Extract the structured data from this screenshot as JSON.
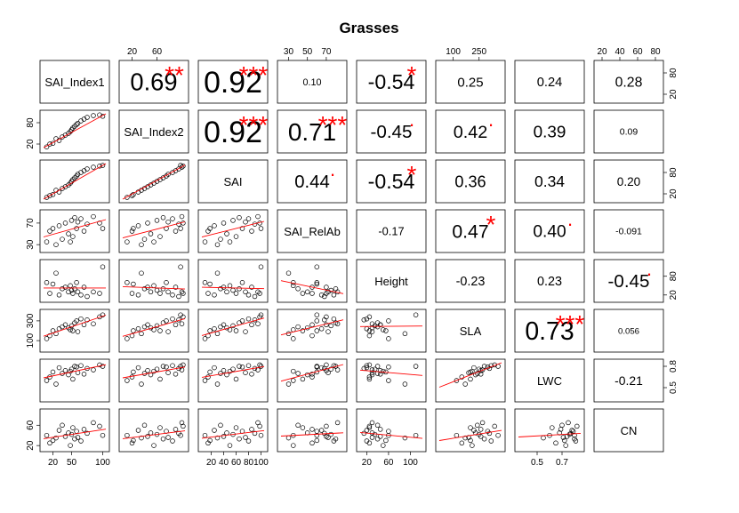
{
  "chart_data": {
    "type": "scatter",
    "title": "Grasses",
    "variables": [
      "SAI_Index1",
      "SAI_Index2",
      "SAI",
      "SAI_RelAb",
      "Height",
      "SLA",
      "LWC",
      "CN"
    ],
    "ranges": [
      [
        5,
        105
      ],
      [
        5,
        105
      ],
      [
        5,
        105
      ],
      [
        22,
        88
      ],
      [
        8,
        122
      ],
      [
        20,
        380
      ],
      [
        0.35,
        0.85
      ],
      [
        15,
        85
      ]
    ],
    "ticks": [
      [
        20,
        40,
        60,
        80,
        100
      ],
      [
        20,
        60,
        100
      ],
      [
        20,
        40,
        60,
        80,
        100
      ],
      [
        30,
        50,
        70
      ],
      [
        20,
        60,
        100
      ],
      [
        100,
        200,
        300
      ],
      [
        0.5,
        0.6,
        0.7,
        0.8
      ],
      [
        20,
        40,
        60,
        80
      ]
    ],
    "tick_labels": [
      [
        "20",
        "",
        "60",
        "",
        "100"
      ],
      [
        "20",
        "60",
        "",
        "",
        ""
      ],
      [
        "20",
        "40",
        "60",
        "80",
        "100"
      ],
      [
        "30",
        "50",
        "70",
        "",
        ""
      ],
      [
        "20",
        "",
        "60",
        "",
        "100"
      ],
      [
        "100",
        "200",
        "300",
        "",
        ""
      ],
      [
        "0.5",
        "0.6",
        "0.7",
        "0.8",
        ""
      ],
      [
        "20",
        "",
        "60",
        "",
        ""
      ]
    ],
    "top_axis_ticks": {
      "1": [
        "20",
        "60"
      ],
      "3": [
        "30",
        "50",
        "70"
      ],
      "5": [
        "100",
        "250"
      ],
      "7": [
        "20",
        "40",
        "60",
        "80"
      ]
    },
    "top_axis_values": {
      "1": [
        20,
        60
      ],
      "3": [
        30,
        50,
        70
      ],
      "5": [
        100,
        250
      ],
      "7": [
        20,
        40,
        60,
        80
      ]
    },
    "bottom_axis_ticks": {
      "0": [
        "20",
        "50",
        "100"
      ],
      "2": [
        "20",
        "40",
        "60",
        "80",
        "100"
      ],
      "4": [
        "20",
        "60",
        "100"
      ],
      "6": [
        "0.5",
        "0.7"
      ]
    },
    "bottom_axis_values": {
      "0": [
        20,
        50,
        100
      ],
      "2": [
        20,
        40,
        60,
        80,
        100
      ],
      "4": [
        20,
        60,
        100
      ],
      "6": [
        0.5,
        0.7
      ]
    },
    "left_axis_ticks": {
      "1": [
        "20",
        "80"
      ],
      "3": [
        "30",
        "70"
      ],
      "5": [
        "100",
        "300"
      ],
      "7": [
        "20",
        "60"
      ]
    },
    "left_axis_values": {
      "1": [
        20,
        80
      ],
      "3": [
        30,
        70
      ],
      "5": [
        100,
        300
      ],
      "7": [
        20,
        60
      ]
    },
    "right_axis_ticks": {
      "0": [
        "20",
        "80"
      ],
      "2": [
        "20",
        "80"
      ],
      "4": [
        "20",
        "80"
      ],
      "6": [
        "0.5",
        "0.8"
      ]
    },
    "right_axis_values": {
      "0": [
        20,
        80
      ],
      "2": [
        20,
        80
      ],
      "4": [
        20,
        80
      ],
      "6": [
        0.5,
        0.8
      ]
    },
    "correlations": [
      {
        "row": 0,
        "col": 1,
        "r": "0.69",
        "stars": "**"
      },
      {
        "row": 0,
        "col": 2,
        "r": "0.92",
        "stars": "***"
      },
      {
        "row": 0,
        "col": 3,
        "r": "0.10",
        "stars": ""
      },
      {
        "row": 0,
        "col": 4,
        "r": "-0.54",
        "stars": "*"
      },
      {
        "row": 0,
        "col": 5,
        "r": "0.25",
        "stars": ""
      },
      {
        "row": 0,
        "col": 6,
        "r": "0.24",
        "stars": ""
      },
      {
        "row": 0,
        "col": 7,
        "r": "0.28",
        "stars": ""
      },
      {
        "row": 1,
        "col": 2,
        "r": "0.92",
        "stars": "***"
      },
      {
        "row": 1,
        "col": 3,
        "r": "0.71",
        "stars": "***"
      },
      {
        "row": 1,
        "col": 4,
        "r": "-0.45",
        "stars": "."
      },
      {
        "row": 1,
        "col": 5,
        "r": "0.42",
        "stars": "."
      },
      {
        "row": 1,
        "col": 6,
        "r": "0.39",
        "stars": ""
      },
      {
        "row": 1,
        "col": 7,
        "r": "0.09",
        "stars": ""
      },
      {
        "row": 2,
        "col": 3,
        "r": "0.44",
        "stars": "."
      },
      {
        "row": 2,
        "col": 4,
        "r": "-0.54",
        "stars": "*"
      },
      {
        "row": 2,
        "col": 5,
        "r": "0.36",
        "stars": ""
      },
      {
        "row": 2,
        "col": 6,
        "r": "0.34",
        "stars": ""
      },
      {
        "row": 2,
        "col": 7,
        "r": "0.20",
        "stars": ""
      },
      {
        "row": 3,
        "col": 4,
        "r": "-0.17",
        "stars": ""
      },
      {
        "row": 3,
        "col": 5,
        "r": "0.47",
        "stars": "*"
      },
      {
        "row": 3,
        "col": 6,
        "r": "0.40",
        "stars": "."
      },
      {
        "row": 3,
        "col": 7,
        "r": "-0.091",
        "stars": ""
      },
      {
        "row": 4,
        "col": 5,
        "r": "-0.23",
        "stars": ""
      },
      {
        "row": 4,
        "col": 6,
        "r": "0.23",
        "stars": ""
      },
      {
        "row": 4,
        "col": 7,
        "r": "-0.45",
        "stars": "."
      },
      {
        "row": 5,
        "col": 6,
        "r": "0.73",
        "stars": "***"
      },
      {
        "row": 5,
        "col": 7,
        "r": "0.056",
        "stars": ""
      },
      {
        "row": 6,
        "col": 7,
        "r": "-0.21",
        "stars": ""
      }
    ],
    "observations": [
      [
        10,
        12,
        10,
        35,
        60,
        120,
        0.6,
        40
      ],
      [
        15,
        20,
        15,
        55,
        25,
        150,
        0.65,
        25
      ],
      [
        20,
        22,
        18,
        60,
        55,
        200,
        0.72,
        30
      ],
      [
        25,
        35,
        30,
        30,
        90,
        170,
        0.55,
        35
      ],
      [
        30,
        30,
        25,
        65,
        20,
        220,
        0.78,
        50
      ],
      [
        35,
        40,
        35,
        40,
        40,
        240,
        0.7,
        60
      ],
      [
        40,
        45,
        40,
        70,
        45,
        260,
        0.74,
        38
      ],
      [
        45,
        50,
        45,
        50,
        30,
        230,
        0.68,
        45
      ],
      [
        48,
        55,
        50,
        35,
        50,
        210,
        0.73,
        20
      ],
      [
        50,
        60,
        55,
        75,
        35,
        250,
        0.76,
        42
      ],
      [
        52,
        65,
        60,
        45,
        25,
        200,
        0.62,
        55
      ],
      [
        55,
        70,
        65,
        80,
        40,
        280,
        0.8,
        33
      ],
      [
        58,
        75,
        70,
        60,
        60,
        300,
        0.79,
        48
      ],
      [
        60,
        78,
        75,
        72,
        30,
        190,
        0.71,
        36
      ],
      [
        65,
        85,
        80,
        78,
        20,
        320,
        0.81,
        29
      ],
      [
        70,
        90,
        85,
        55,
        45,
        260,
        0.69,
        52
      ],
      [
        75,
        95,
        90,
        68,
        15,
        310,
        0.77,
        44
      ],
      [
        85,
        100,
        95,
        82,
        30,
        270,
        0.75,
        65
      ],
      [
        95,
        102,
        98,
        70,
        25,
        340,
        0.82,
        58
      ],
      [
        100,
        98,
        100,
        60,
        110,
        360,
        0.8,
        40
      ]
    ]
  }
}
